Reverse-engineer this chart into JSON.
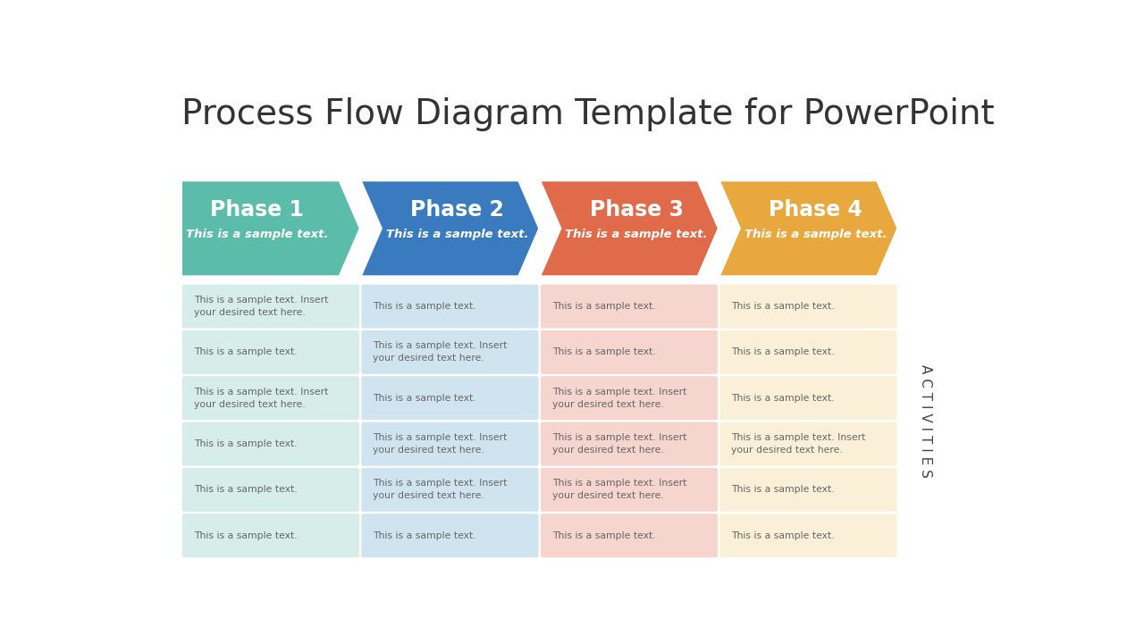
{
  "title": "Process Flow Diagram Template for PowerPoint",
  "title_fontsize": 28,
  "title_color": "#333333",
  "background_color": "#ffffff",
  "phases": [
    {
      "label": "Phase 1",
      "subtitle": "This is a sample text.",
      "color": "#5bbcaa",
      "text_color": "#ffffff"
    },
    {
      "label": "Phase 2",
      "subtitle": "This is a sample text.",
      "color": "#3a7bbf",
      "text_color": "#ffffff"
    },
    {
      "label": "Phase 3",
      "subtitle": "This is a sample text.",
      "color": "#e06b4a",
      "text_color": "#ffffff"
    },
    {
      "label": "Phase 4",
      "subtitle": "This is a sample text.",
      "color": "#e8a83e",
      "text_color": "#ffffff"
    }
  ],
  "cell_colors": [
    "#d6ede9",
    "#d0e4f0",
    "#f5d5ce",
    "#faf0d7"
  ],
  "activities_label": "A C T I V I T I E S",
  "rows": [
    [
      "This is a sample text. Insert\nyour desired text here.",
      "This is a sample text.",
      "This is a sample text.",
      "This is a sample text."
    ],
    [
      "This is a sample text.",
      "This is a sample text. Insert\nyour desired text here.",
      "This is a sample text.",
      "This is a sample text."
    ],
    [
      "This is a sample text. Insert\nyour desired text here.",
      "This is a sample text.",
      "This is a sample text. Insert\nyour desired text here.",
      "This is a sample text."
    ],
    [
      "This is a sample text.",
      "This is a sample text. Insert\nyour desired text here.",
      "This is a sample text. Insert\nyour desired text here.",
      "This is a sample text. Insert\nyour desired text here."
    ],
    [
      "This is a sample text.",
      "This is a sample text. Insert\nyour desired text here.",
      "This is a sample text. Insert\nyour desired text here.",
      "This is a sample text."
    ],
    [
      "This is a sample text.",
      "This is a sample text.",
      "This is a sample text.",
      "This is a sample text."
    ]
  ]
}
